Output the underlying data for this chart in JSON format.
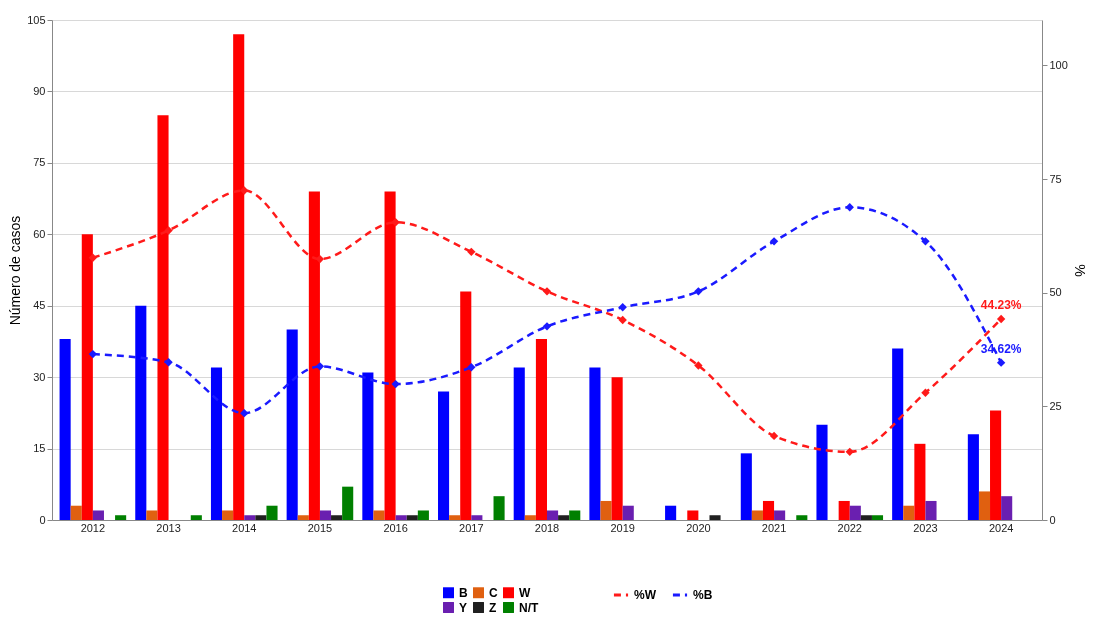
{
  "chart_data": {
    "type": "bar",
    "ylabel": "Número de casos",
    "y2label": "%",
    "categories": [
      "2012",
      "2013",
      "2014",
      "2015",
      "2016",
      "2017",
      "2018",
      "2019",
      "2020",
      "2021",
      "2022",
      "2023",
      "2024"
    ],
    "series": [
      {
        "name": "B",
        "color": "#0000ff",
        "values": [
          38,
          45,
          32,
          40,
          31,
          27,
          32,
          32,
          3,
          14,
          20,
          36,
          18
        ]
      },
      {
        "name": "C",
        "color": "#e06010",
        "values": [
          3,
          2,
          2,
          1,
          2,
          1,
          1,
          4,
          0,
          2,
          0,
          3,
          6
        ]
      },
      {
        "name": "W",
        "color": "#ff0000",
        "values": [
          60,
          85,
          102,
          69,
          69,
          48,
          38,
          30,
          2,
          4,
          4,
          16,
          23
        ]
      },
      {
        "name": "Y",
        "color": "#6a1fb0",
        "values": [
          2,
          0,
          1,
          2,
          1,
          1,
          2,
          3,
          0,
          2,
          3,
          4,
          5
        ]
      },
      {
        "name": "Z",
        "color": "#202020",
        "values": [
          0,
          0,
          1,
          1,
          1,
          0,
          1,
          0,
          1,
          0,
          1,
          0,
          0
        ]
      },
      {
        "name": "N/T",
        "color": "#008000",
        "values": [
          1,
          1,
          3,
          7,
          2,
          5,
          2,
          0,
          0,
          1,
          1,
          0,
          0
        ]
      },
      {
        "name": "%W",
        "type": "line",
        "axis": "y2",
        "color": "#ff1a1a",
        "line_style": "dashed",
        "marker": "diamond",
        "values": [
          57.7,
          63.7,
          72.5,
          57.4,
          65.5,
          59,
          50.3,
          44,
          34,
          18.5,
          15,
          28,
          44.23
        ],
        "value_labels": [
          null,
          null,
          null,
          null,
          null,
          null,
          null,
          null,
          null,
          null,
          null,
          null,
          "44.23%"
        ]
      },
      {
        "name": "%B",
        "type": "line",
        "axis": "y2",
        "color": "#1a1aff",
        "line_style": "dashed",
        "marker": "diamond",
        "values": [
          36.5,
          34.7,
          23.5,
          33.8,
          29.9,
          33.6,
          42.6,
          46.8,
          50.3,
          61.3,
          68.8,
          61.3,
          34.62
        ],
        "value_labels": [
          null,
          null,
          null,
          null,
          null,
          null,
          null,
          null,
          null,
          null,
          null,
          null,
          "34.62%"
        ]
      }
    ],
    "ylim": [
      0,
      105
    ],
    "yticks": [
      0,
      15,
      30,
      45,
      60,
      75,
      90,
      105
    ],
    "y2lim": [
      0,
      110
    ],
    "y2ticks": [
      0,
      25,
      50,
      75,
      100
    ],
    "grid": "y",
    "legend": "bottom"
  }
}
